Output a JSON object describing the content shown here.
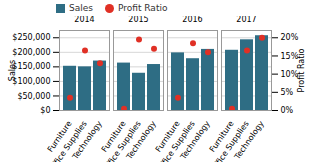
{
  "chart_data": {
    "type": "bar",
    "groups": [
      "2014",
      "2015",
      "2016",
      "2017"
    ],
    "categories": [
      "Furniture",
      "Office Supplies",
      "Technology"
    ],
    "series": [
      {
        "name": "Sales",
        "type": "bar",
        "color": "#2E6D84",
        "values": [
          [
            152000,
            150000,
            170000
          ],
          [
            163000,
            128000,
            158000
          ],
          [
            198000,
            178000,
            210000
          ],
          [
            207000,
            243000,
            257000
          ]
        ]
      },
      {
        "name": "Profit Ratio",
        "type": "scatter",
        "marker": "circle",
        "axis": "y2",
        "color": "#E03025",
        "values": [
          [
            3.5,
            16.5,
            13.0
          ],
          [
            0.5,
            19.5,
            17.0
          ],
          [
            3.5,
            18.5,
            16.0
          ],
          [
            0.5,
            16.5,
            20.0
          ]
        ]
      }
    ],
    "ylabel": "Sales",
    "y2label": "Profit Ratio",
    "ylim": [
      0,
      275000
    ],
    "yticks": [
      {
        "value": 0,
        "label": "$0"
      },
      {
        "value": 50000,
        "label": "$50,000"
      },
      {
        "value": 100000,
        "label": "$100,000"
      },
      {
        "value": 150000,
        "label": "$150,000"
      },
      {
        "value": 200000,
        "label": "$200,000"
      },
      {
        "value": 250000,
        "label": "$250,000"
      }
    ],
    "y2lim": [
      0,
      22
    ],
    "y2ticks": [
      {
        "value": 0,
        "label": "0%"
      },
      {
        "value": 5,
        "label": "5%"
      },
      {
        "value": 10,
        "label": "10%"
      },
      {
        "value": 15,
        "label": "15%"
      },
      {
        "value": 20,
        "label": "20%"
      }
    ],
    "grid": true,
    "legend": "top"
  }
}
